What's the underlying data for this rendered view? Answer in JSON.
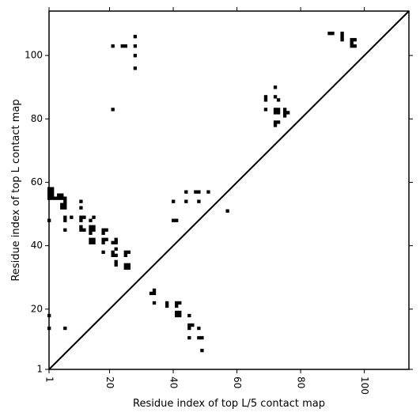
{
  "chart_data": {
    "type": "scatter",
    "title": "",
    "xlabel": "Residue index of top L/5 contact map",
    "ylabel": "Residue index of top L contact map",
    "xlim": [
      1,
      114
    ],
    "ylim": [
      1,
      114
    ],
    "x_ticks": [
      1,
      20,
      40,
      60,
      80,
      100
    ],
    "y_ticks": [
      1,
      20,
      40,
      60,
      80,
      100
    ],
    "x_tick_labels": [
      "1",
      "20",
      "40",
      "60",
      "80",
      "100"
    ],
    "y_tick_labels": [
      "1",
      "20",
      "40",
      "60",
      "80",
      "100"
    ],
    "x_tick_rotation": "rotated 90 degrees",
    "grid": false,
    "legend": "none",
    "marker": "square",
    "marker_color": "#000000",
    "diagonal_line": {
      "from": [
        1,
        1
      ],
      "to": [
        114,
        114
      ],
      "color": "#000000"
    },
    "series": [
      {
        "name": "",
        "points": [
          [
            1,
            58
          ],
          [
            2,
            58
          ],
          [
            1,
            57
          ],
          [
            2,
            57
          ],
          [
            1,
            56
          ],
          [
            2,
            56
          ],
          [
            1,
            55
          ],
          [
            2,
            55
          ],
          [
            3,
            55
          ],
          [
            4,
            55
          ],
          [
            5,
            55
          ],
          [
            6,
            55
          ],
          [
            4,
            56
          ],
          [
            5,
            56
          ],
          [
            6,
            54
          ],
          [
            6,
            53
          ],
          [
            6,
            52
          ],
          [
            5,
            53
          ],
          [
            5,
            52
          ],
          [
            1,
            48
          ],
          [
            6,
            49
          ],
          [
            6,
            48
          ],
          [
            8,
            49
          ],
          [
            6,
            45
          ],
          [
            11,
            54
          ],
          [
            11,
            52
          ],
          [
            11,
            49
          ],
          [
            12,
            49
          ],
          [
            11,
            48
          ],
          [
            11,
            46
          ],
          [
            11,
            45
          ],
          [
            12,
            45
          ],
          [
            14,
            48
          ],
          [
            15,
            49
          ],
          [
            14,
            46
          ],
          [
            15,
            46
          ],
          [
            14,
            45
          ],
          [
            15,
            45
          ],
          [
            14,
            44
          ],
          [
            14,
            42
          ],
          [
            15,
            42
          ],
          [
            14,
            41
          ],
          [
            15,
            41
          ],
          [
            18,
            45
          ],
          [
            19,
            45
          ],
          [
            18,
            44
          ],
          [
            18,
            42
          ],
          [
            19,
            42
          ],
          [
            18,
            41
          ],
          [
            18,
            38
          ],
          [
            21,
            41
          ],
          [
            22,
            42
          ],
          [
            22,
            41
          ],
          [
            21,
            38
          ],
          [
            22,
            39
          ],
          [
            21,
            37
          ],
          [
            22,
            37
          ],
          [
            22,
            35
          ],
          [
            22,
            34
          ],
          [
            25,
            38
          ],
          [
            26,
            38
          ],
          [
            25,
            37
          ],
          [
            25,
            34
          ],
          [
            26,
            34
          ],
          [
            25,
            33
          ],
          [
            26,
            33
          ],
          [
            1,
            18
          ],
          [
            1,
            14
          ],
          [
            6,
            14
          ],
          [
            21,
            103
          ],
          [
            24,
            103
          ],
          [
            25,
            103
          ],
          [
            28,
            106
          ],
          [
            28,
            103
          ],
          [
            28,
            100
          ],
          [
            28,
            96
          ],
          [
            21,
            83
          ],
          [
            33,
            25
          ],
          [
            34,
            25
          ],
          [
            34,
            26
          ],
          [
            34,
            22
          ],
          [
            38,
            22
          ],
          [
            38,
            21
          ],
          [
            41,
            22
          ],
          [
            42,
            22
          ],
          [
            41,
            21
          ],
          [
            41,
            19
          ],
          [
            42,
            19
          ],
          [
            41,
            18
          ],
          [
            42,
            18
          ],
          [
            45,
            18
          ],
          [
            45,
            15
          ],
          [
            46,
            15
          ],
          [
            45,
            14
          ],
          [
            48,
            14
          ],
          [
            45,
            11
          ],
          [
            48,
            11
          ],
          [
            49,
            11
          ],
          [
            49,
            7
          ],
          [
            40,
            54
          ],
          [
            40,
            48
          ],
          [
            41,
            48
          ],
          [
            44,
            57
          ],
          [
            44,
            54
          ],
          [
            47,
            57
          ],
          [
            48,
            57
          ],
          [
            48,
            54
          ],
          [
            51,
            57
          ],
          [
            57,
            51
          ],
          [
            69,
            87
          ],
          [
            69,
            86
          ],
          [
            69,
            83
          ],
          [
            72,
            90
          ],
          [
            72,
            87
          ],
          [
            73,
            86
          ],
          [
            72,
            83
          ],
          [
            73,
            83
          ],
          [
            72,
            82
          ],
          [
            73,
            82
          ],
          [
            72,
            79
          ],
          [
            73,
            79
          ],
          [
            72,
            78
          ],
          [
            75,
            83
          ],
          [
            75,
            82
          ],
          [
            76,
            82
          ],
          [
            75,
            81
          ],
          [
            89,
            107
          ],
          [
            90,
            107
          ],
          [
            93,
            107
          ],
          [
            93,
            106
          ],
          [
            93,
            105
          ],
          [
            96,
            105
          ],
          [
            97,
            105
          ],
          [
            96,
            104
          ],
          [
            96,
            103
          ],
          [
            97,
            103
          ]
        ]
      }
    ]
  }
}
